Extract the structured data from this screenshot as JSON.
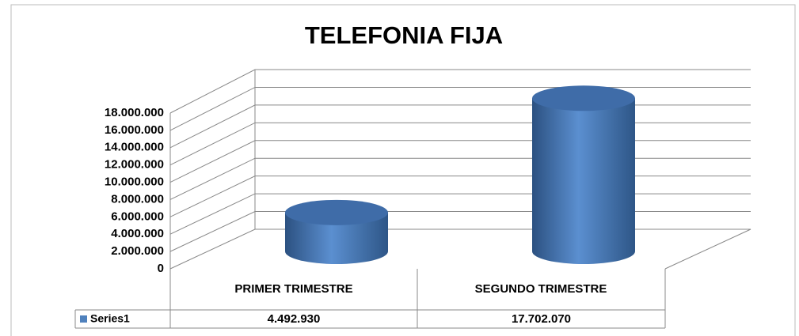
{
  "chart_data": {
    "type": "bar3d-cylinder",
    "title": "TELEFONIA  FIJA",
    "categories": [
      "PRIMER TRIMESTRE",
      "SEGUNDO TRIMESTRE"
    ],
    "series": [
      {
        "name": "Series1",
        "color": "#4f81bd",
        "values": [
          4492930,
          17702070
        ],
        "value_labels": [
          "4.492.930",
          "17.702.070"
        ]
      }
    ],
    "ylim": [
      0,
      18000000
    ],
    "yticks": [
      0,
      {
        "value": 2000000,
        "label": "2.000.000"
      },
      {
        "value": 4000000,
        "label": "4.000.000"
      },
      {
        "value": 6000000,
        "label": "6.000.000"
      },
      {
        "value": 8000000,
        "label": "8.000.000"
      },
      {
        "value": 10000000,
        "label": "10.000.000"
      },
      {
        "value": 12000000,
        "label": "12.000.000"
      },
      {
        "value": 14000000,
        "label": "14.000.000"
      },
      {
        "value": 16000000,
        "label": "16.000.000"
      },
      {
        "value": 18000000,
        "label": "18.000.000"
      }
    ],
    "grid": true,
    "data_table": true
  }
}
